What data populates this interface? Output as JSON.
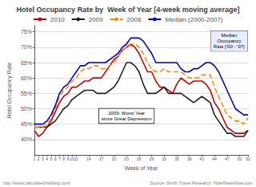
{
  "chart_data": {
    "type": "line",
    "title": "Hotel Occupancy Rate by  Week of Year [4-week moving average]",
    "xlabel": "Week of Year",
    "ylabel": "Hotel Occupancy Rate",
    "x": [
      1,
      2,
      3,
      4,
      5,
      6,
      7,
      8,
      9,
      10,
      11,
      12,
      13,
      14,
      15,
      16,
      17,
      18,
      19,
      20,
      21,
      22,
      23,
      24,
      25,
      26,
      27,
      28,
      29,
      30,
      31,
      32,
      33,
      34,
      35,
      36,
      37,
      38,
      39,
      40,
      41,
      42,
      43,
      44,
      45,
      46,
      47,
      48,
      49,
      50,
      51,
      52
    ],
    "series": [
      {
        "name": "2010",
        "color": "#cc0000",
        "line_style": "solid",
        "values": [
          43,
          41,
          42,
          44,
          46,
          49,
          52,
          54,
          55,
          57,
          57,
          58,
          59,
          59,
          60,
          60,
          60,
          62,
          64,
          66,
          67,
          69,
          70,
          71,
          70,
          68,
          65,
          62,
          62,
          59,
          57,
          57,
          56,
          55,
          58,
          60,
          59,
          58,
          59,
          59,
          59,
          58,
          56,
          52,
          50,
          47,
          44,
          43,
          42,
          42,
          42,
          43
        ]
      },
      {
        "name": "2009",
        "color": "#222222",
        "line_style": "solid",
        "values": [
          44,
          44,
          44,
          44,
          45,
          46,
          48,
          50,
          51,
          53,
          54,
          55,
          56,
          56,
          56,
          55,
          55,
          55,
          56,
          57,
          59,
          62,
          65,
          65,
          64,
          62,
          58,
          55,
          55,
          55,
          56,
          57,
          55,
          55,
          55,
          55,
          54,
          53,
          52,
          53,
          54,
          53,
          52,
          48,
          46,
          44,
          42,
          42,
          41,
          41,
          41,
          43
        ]
      },
      {
        "name": "2008",
        "color": "#ff8c00",
        "line_style": "dashed",
        "values": [
          44,
          44,
          44,
          45,
          47,
          50,
          54,
          56,
          57,
          59,
          60,
          62,
          63,
          63,
          64,
          64,
          63,
          63,
          64,
          65,
          67,
          69,
          70,
          71,
          71,
          70,
          68,
          65,
          63,
          62,
          62,
          63,
          62,
          62,
          62,
          62,
          61,
          60,
          60,
          60,
          61,
          61,
          61,
          57,
          54,
          51,
          48,
          47,
          46,
          46,
          45,
          47
        ]
      },
      {
        "name": "Median (2000-2007)",
        "color": "#0000cc",
        "line_style": "solid",
        "values": [
          45,
          45,
          45,
          46,
          48,
          51,
          55,
          57,
          58,
          60,
          62,
          64,
          64,
          65,
          65,
          65,
          65,
          65,
          66,
          67,
          68,
          70,
          71,
          73,
          73,
          73,
          72,
          70,
          68,
          65,
          65,
          65,
          65,
          65,
          65,
          63,
          62,
          62,
          63,
          63,
          64,
          65,
          65,
          64,
          62,
          59,
          56,
          53,
          50,
          49,
          48,
          48
        ]
      }
    ],
    "xlim": [
      1,
      52
    ],
    "xticks": [
      1,
      2,
      3,
      4,
      5,
      6,
      7,
      8,
      9,
      10,
      11,
      14,
      17,
      20,
      23,
      26,
      29,
      32,
      35,
      38,
      41,
      44,
      47,
      50,
      52
    ],
    "ylim": [
      35,
      77
    ],
    "yticks": [
      {
        "value": 40,
        "label": "40%"
      },
      {
        "value": 45,
        "label": "45%"
      },
      {
        "value": 50,
        "label": "50%"
      },
      {
        "value": 55,
        "label": "55%"
      },
      {
        "value": 60,
        "label": "60%"
      },
      {
        "value": 65,
        "label": "65%"
      },
      {
        "value": 70,
        "label": "70%"
      },
      {
        "value": 75,
        "label": "75%"
      }
    ],
    "grid": true,
    "legend": "upper left",
    "annotations": [
      {
        "text": "2009: Worst Year\nsince Great Depression",
        "x": 23,
        "y": 50
      },
      {
        "text": "Median\nOccupancy\nRate [’00 - ’07)",
        "x": 47.5,
        "y": 72
      }
    ],
    "footer": [
      "http://www.calculatedriskblog.com/",
      "Source: Smith Travel Research, HotelNewsNow.com"
    ]
  }
}
